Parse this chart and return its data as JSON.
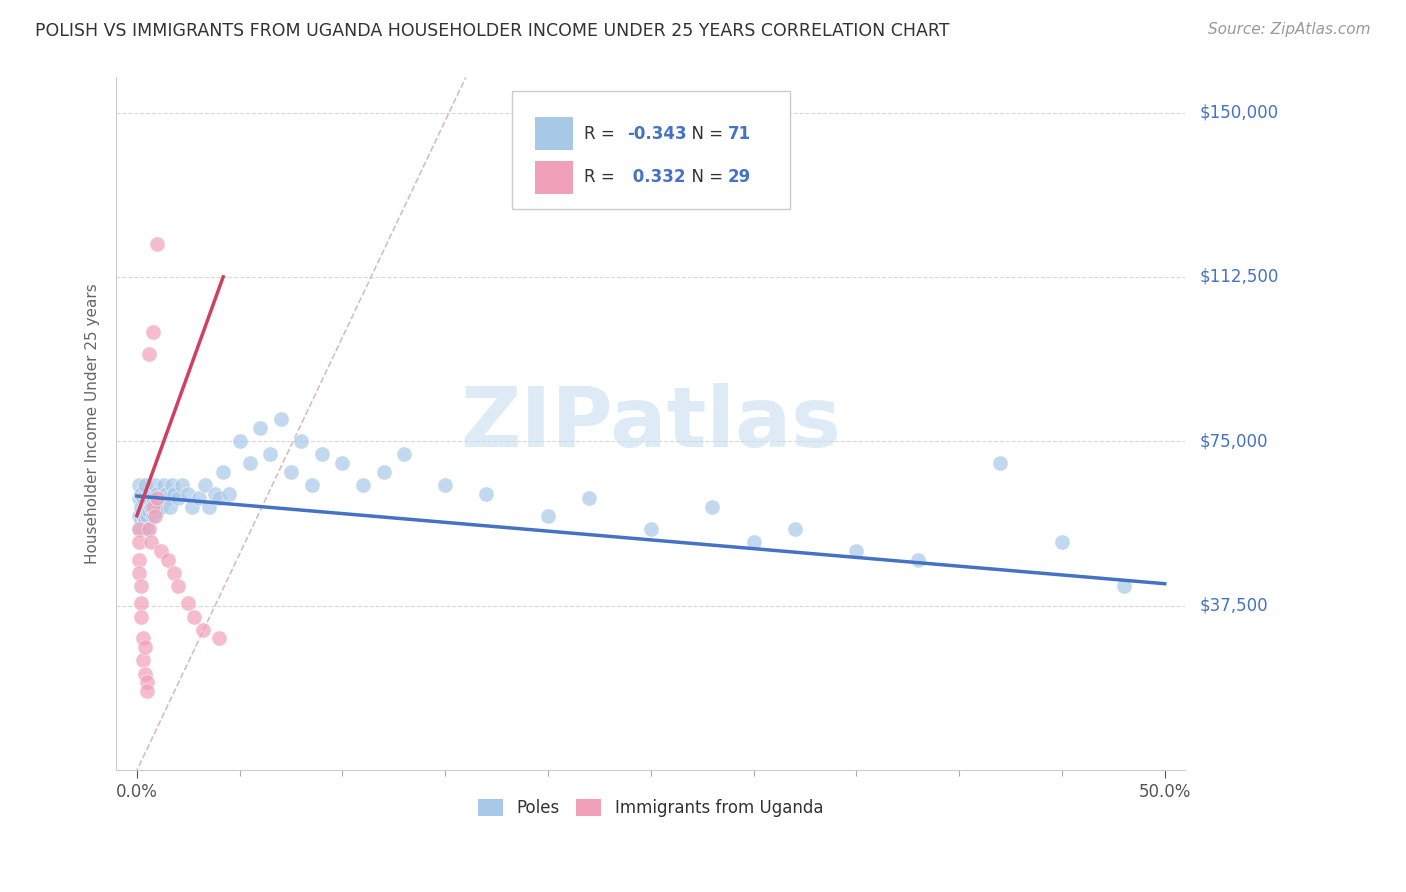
{
  "title": "POLISH VS IMMIGRANTS FROM UGANDA HOUSEHOLDER INCOME UNDER 25 YEARS CORRELATION CHART",
  "source": "Source: ZipAtlas.com",
  "xlabel_start": "0.0%",
  "xlabel_end": "50.0%",
  "xlim_start": 0.0,
  "xlim_end": 0.5,
  "ylabel": "Householder Income Under 25 years",
  "ylabel_ticks": [
    "$37,500",
    "$75,000",
    "$112,500",
    "$150,000"
  ],
  "ylabel_values": [
    37500,
    75000,
    112500,
    150000
  ],
  "ylim_min": 0,
  "ylim_max": 158000,
  "legend_label1": "Poles",
  "legend_label2": "Immigrants from Uganda",
  "R1": "-0.343",
  "N1": "71",
  "R2": "0.332",
  "N2": "29",
  "color_poles": "#a8c8e8",
  "color_poles_line": "#4472c4",
  "color_uganda": "#f0a0b8",
  "color_uganda_line": "#d04060",
  "color_diagonal": "#d0a0a8",
  "watermark": "ZIPatlas",
  "watermark_color": "#c8dff0",
  "poles_x": [
    0.001,
    0.001,
    0.001,
    0.001,
    0.002,
    0.002,
    0.002,
    0.003,
    0.003,
    0.003,
    0.004,
    0.004,
    0.004,
    0.005,
    0.005,
    0.005,
    0.006,
    0.006,
    0.007,
    0.007,
    0.008,
    0.008,
    0.009,
    0.009,
    0.01,
    0.01,
    0.011,
    0.012,
    0.013,
    0.014,
    0.015,
    0.016,
    0.017,
    0.018,
    0.02,
    0.022,
    0.025,
    0.027,
    0.03,
    0.033,
    0.035,
    0.038,
    0.04,
    0.042,
    0.045,
    0.05,
    0.055,
    0.06,
    0.065,
    0.07,
    0.075,
    0.08,
    0.085,
    0.09,
    0.1,
    0.11,
    0.12,
    0.13,
    0.15,
    0.17,
    0.2,
    0.22,
    0.25,
    0.28,
    0.3,
    0.32,
    0.35,
    0.38,
    0.42,
    0.45,
    0.48
  ],
  "poles_y": [
    58000,
    62000,
    55000,
    65000,
    60000,
    57000,
    63000,
    58000,
    62000,
    55000,
    60000,
    65000,
    57000,
    62000,
    58000,
    55000,
    62000,
    59000,
    63000,
    60000,
    62000,
    58000,
    65000,
    60000,
    63000,
    59000,
    62000,
    60000,
    65000,
    63000,
    62000,
    60000,
    65000,
    63000,
    62000,
    65000,
    63000,
    60000,
    62000,
    65000,
    60000,
    63000,
    62000,
    68000,
    63000,
    75000,
    70000,
    78000,
    72000,
    80000,
    68000,
    75000,
    65000,
    72000,
    70000,
    65000,
    68000,
    72000,
    65000,
    63000,
    58000,
    62000,
    55000,
    60000,
    52000,
    55000,
    50000,
    48000,
    70000,
    52000,
    42000
  ],
  "uganda_x": [
    0.001,
    0.001,
    0.001,
    0.001,
    0.002,
    0.002,
    0.002,
    0.003,
    0.003,
    0.004,
    0.004,
    0.005,
    0.005,
    0.006,
    0.007,
    0.008,
    0.009,
    0.01,
    0.012,
    0.015,
    0.018,
    0.02,
    0.025,
    0.028,
    0.032,
    0.04,
    0.01,
    0.008,
    0.006
  ],
  "uganda_y": [
    55000,
    52000,
    48000,
    45000,
    42000,
    38000,
    35000,
    30000,
    25000,
    28000,
    22000,
    20000,
    18000,
    55000,
    52000,
    60000,
    58000,
    62000,
    50000,
    48000,
    45000,
    42000,
    38000,
    35000,
    32000,
    30000,
    120000,
    100000,
    95000
  ]
}
